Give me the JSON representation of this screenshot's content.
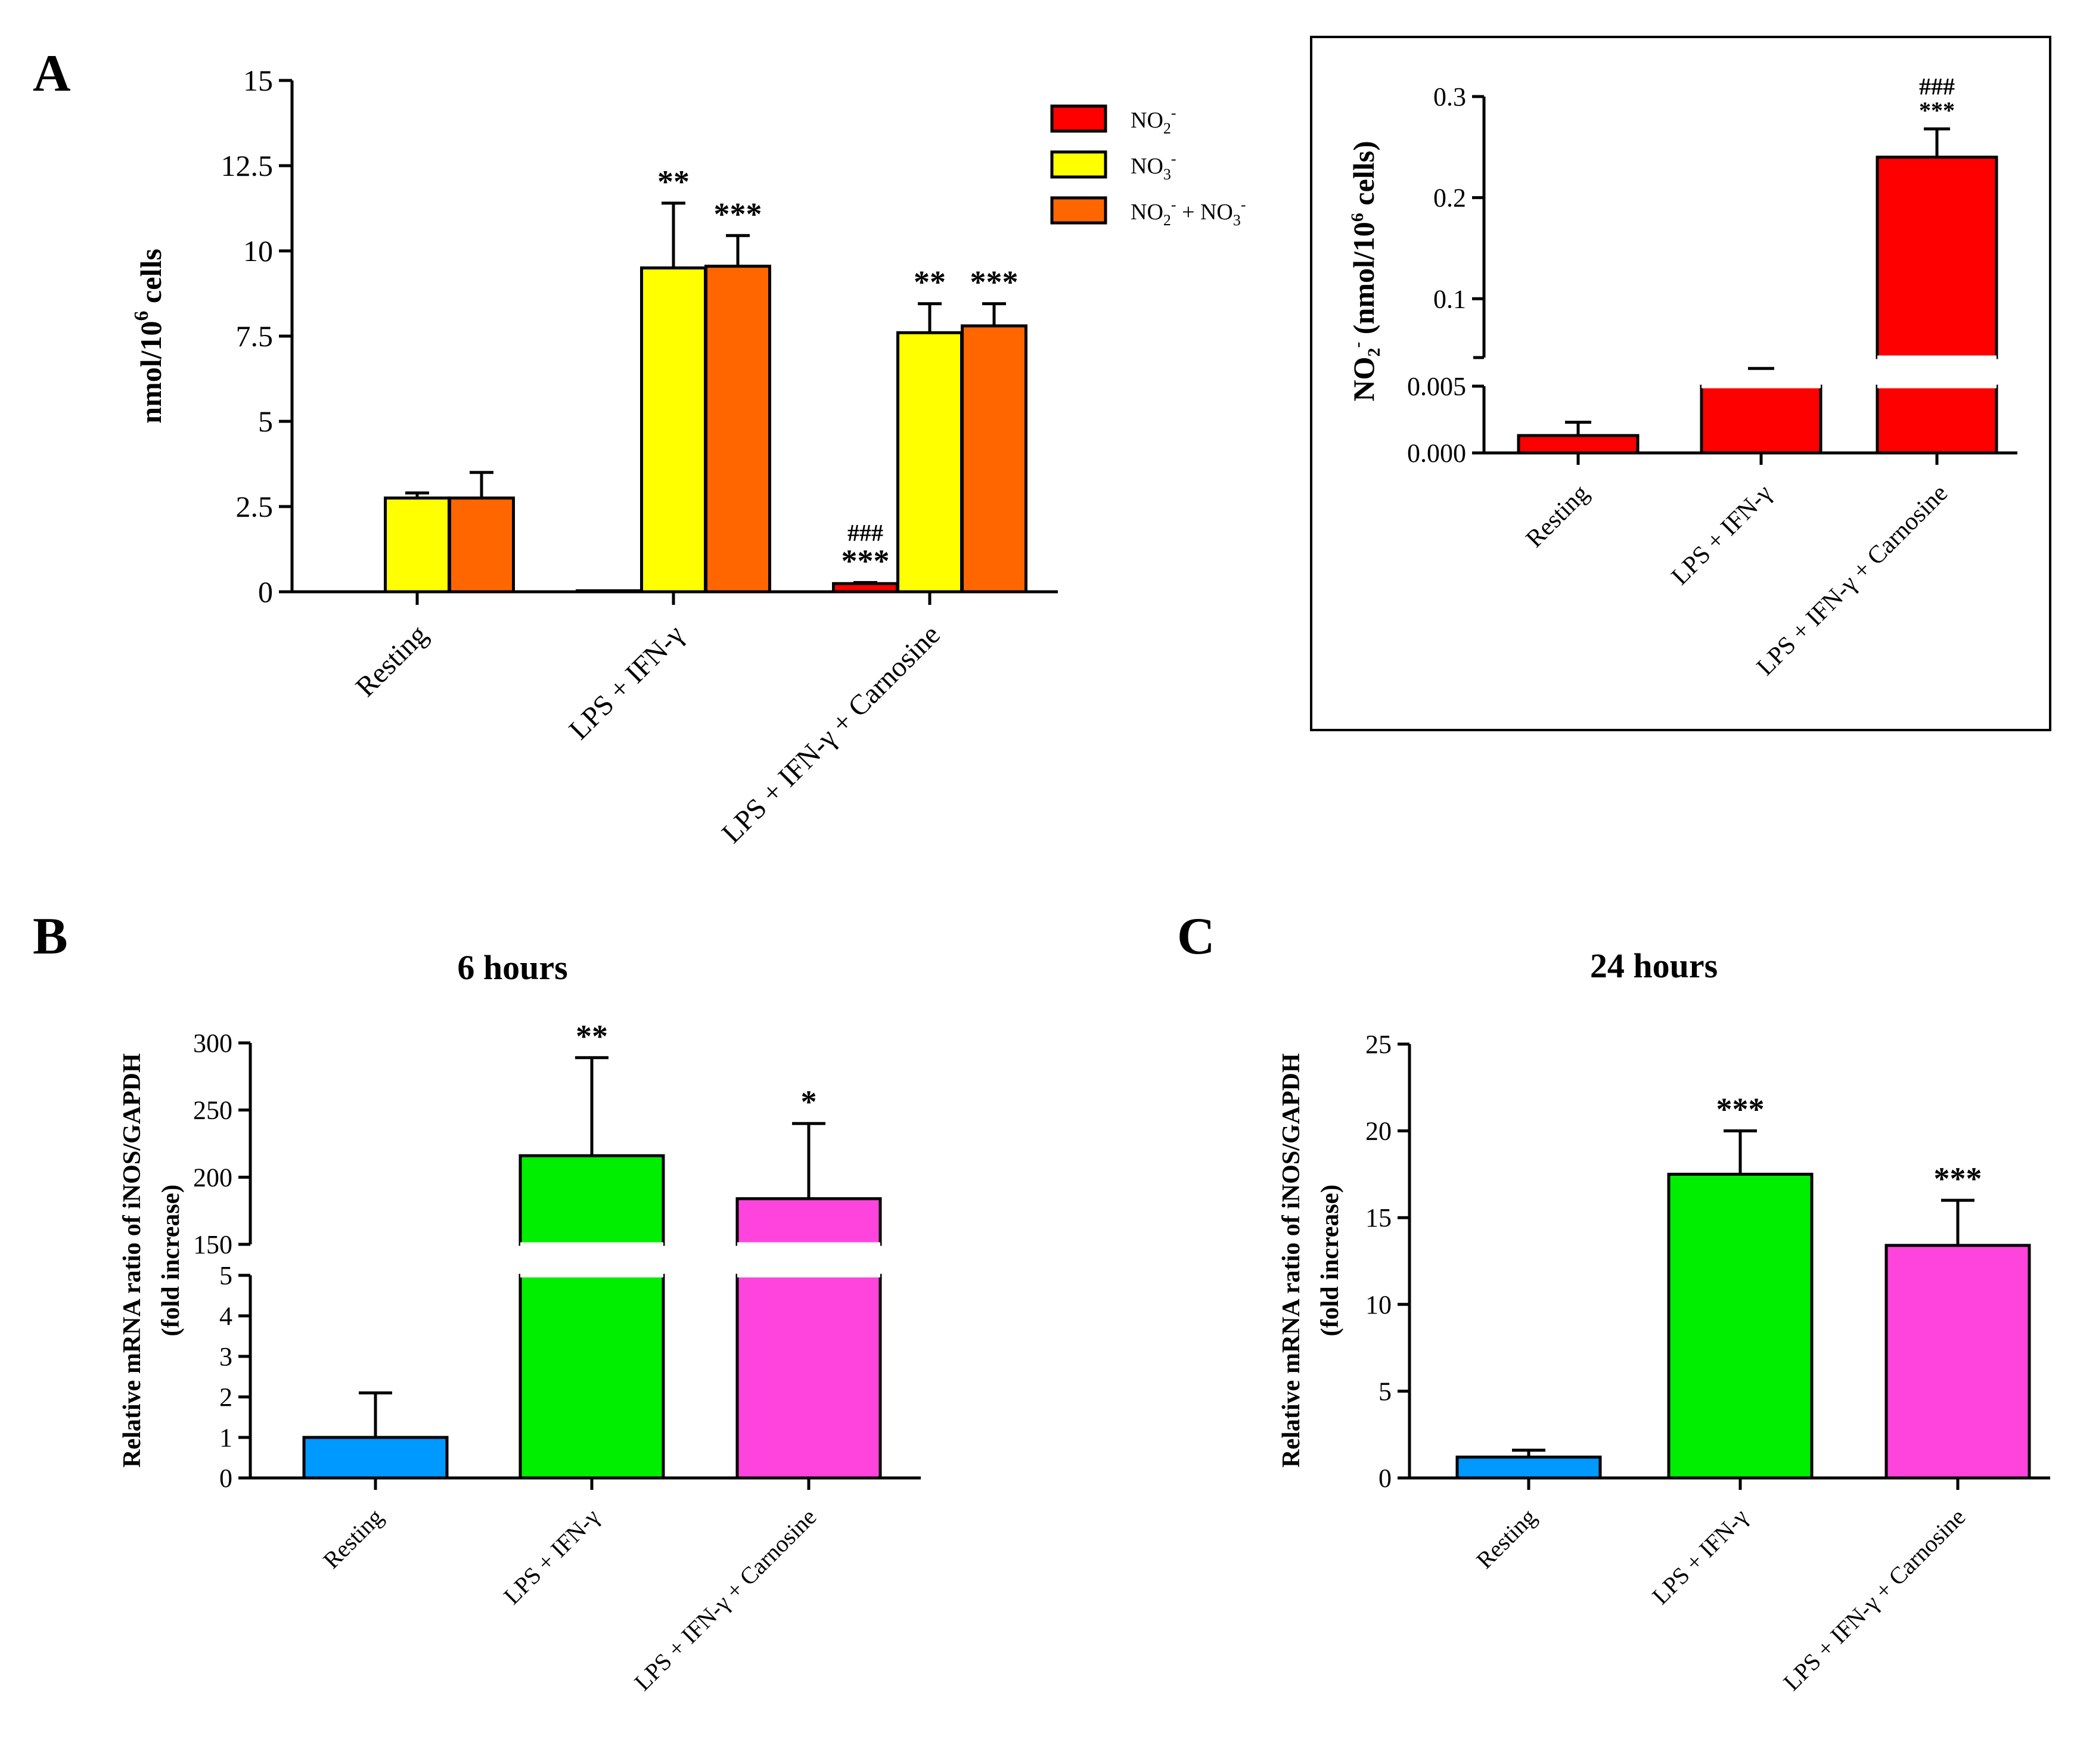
{
  "chart_data": [
    {
      "panel": "A",
      "type": "bar",
      "ylabel_main": "nmol/10",
      "ylabel_exp": "6",
      "ylabel_tail": " cells",
      "ylim": [
        0,
        15
      ],
      "yticks": [
        "0",
        "2.5",
        "5",
        "7.5",
        "10",
        "12.5",
        "15"
      ],
      "categories": [
        "Resting",
        "LPS + IFN-γ",
        "LPS + IFN-γ + Carnosine"
      ],
      "series": [
        {
          "name": "NO2-",
          "legend_base": "NO",
          "legend_sub": "2",
          "legend_sup": "-",
          "color": "#ff0000",
          "values": [
            0.0,
            0.03,
            0.24
          ],
          "errors": [
            0.0,
            0.0,
            0.03
          ]
        },
        {
          "name": "NO3-",
          "legend_base": "NO",
          "legend_sub": "3",
          "legend_sup": "-",
          "color": "#ffff00",
          "values": [
            2.75,
            9.5,
            7.6
          ],
          "errors": [
            0.15,
            1.9,
            0.85
          ]
        },
        {
          "name": "NO2- + NO3-",
          "legend_base": "NO",
          "legend_sub": "2",
          "legend_sup": "-",
          "legend_plus": " + NO",
          "legend_sub2": "3",
          "legend_sup2": "-",
          "color": "#ff6600",
          "values": [
            2.75,
            9.55,
            7.8
          ],
          "errors": [
            0.75,
            0.9,
            0.65
          ]
        }
      ],
      "annotations": [
        {
          "category": 1,
          "series": 1,
          "text": "**"
        },
        {
          "category": 1,
          "series": 2,
          "text": "***"
        },
        {
          "category": 2,
          "series": 0,
          "text": "***",
          "text2": "###"
        },
        {
          "category": 2,
          "series": 1,
          "text": "**"
        },
        {
          "category": 2,
          "series": 2,
          "text": "***"
        }
      ]
    },
    {
      "panel": "A-inset",
      "type": "bar",
      "ylabel_main": "NO",
      "ylabel_sub": "2",
      "ylabel_sup": "-",
      "ylabel_mid": " (nmol/10",
      "ylabel_exp": "6",
      "ylabel_tail": " cells)",
      "yticks_low": [
        "0.000",
        "0.005"
      ],
      "yticks_high": [
        "0.1",
        "0.2",
        "0.3"
      ],
      "categories": [
        "Resting",
        "LPS + IFN-γ",
        "LPS + IFN-γ + Carnosine"
      ],
      "values": [
        0.0013,
        0.03,
        0.24
      ],
      "errors": [
        0.001,
        0.001,
        0.028
      ],
      "color": "#ff0000",
      "annotations": [
        {
          "category": 2,
          "text": "***",
          "text2": "###"
        }
      ]
    },
    {
      "panel": "B",
      "type": "bar",
      "title": "6 hours",
      "ylabel_line1": "Relative mRNA ratio of iNOS/GAPDH",
      "ylabel_line2": "(fold increase)",
      "yticks_low": [
        "0",
        "1",
        "2",
        "3",
        "4",
        "5"
      ],
      "yticks_high": [
        "150",
        "200",
        "250",
        "300"
      ],
      "categories": [
        "Resting",
        "LPS + IFN-γ",
        "LPS + IFN-γ + Carnosine"
      ],
      "values": [
        1.0,
        216,
        184
      ],
      "errors": [
        1.1,
        73,
        56
      ],
      "colors": [
        "#0099ff",
        "#00ee00",
        "#ff44dd"
      ],
      "annotations": [
        {
          "category": 1,
          "text": "**"
        },
        {
          "category": 2,
          "text": "*"
        }
      ]
    },
    {
      "panel": "C",
      "type": "bar",
      "title": "24 hours",
      "ylabel_line1": "Relative mRNA ratio of iNOS/GAPDH",
      "ylabel_line2": "(fold increase)",
      "ylim": [
        0,
        25
      ],
      "yticks": [
        "0",
        "5",
        "10",
        "15",
        "20",
        "25"
      ],
      "categories": [
        "Resting",
        "LPS + IFN-γ",
        "LPS + IFN-γ + Carnosine"
      ],
      "values": [
        1.2,
        17.5,
        13.4
      ],
      "errors": [
        0.4,
        2.5,
        2.6
      ],
      "colors": [
        "#0099ff",
        "#00ee00",
        "#ff44dd"
      ],
      "annotations": [
        {
          "category": 1,
          "text": "***"
        },
        {
          "category": 2,
          "text": "***"
        }
      ]
    }
  ],
  "panel_letters": {
    "a": "A",
    "b": "B",
    "c": "C"
  }
}
